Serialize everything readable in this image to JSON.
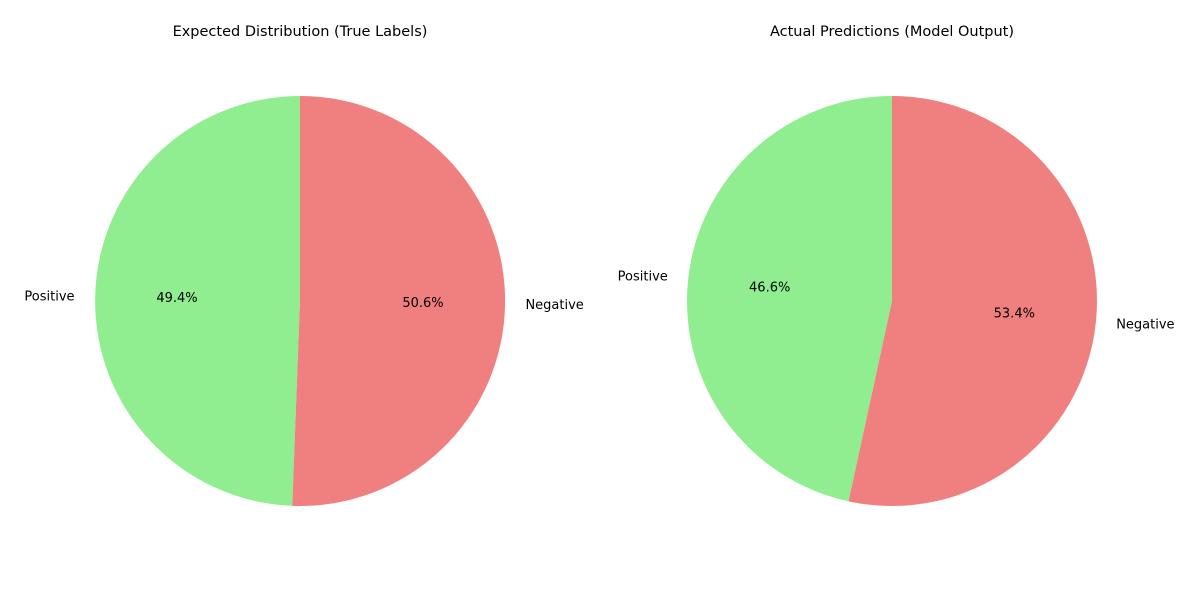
{
  "chart_data": [
    {
      "type": "pie",
      "title": "Expected Distribution (True Labels)",
      "slices": [
        {
          "label": "Positive",
          "value": 49.4,
          "pct_label": "49.4%",
          "color": "#90ee90"
        },
        {
          "label": "Negative",
          "value": 50.6,
          "pct_label": "50.6%",
          "color": "#f08080"
        }
      ],
      "start_angle_deg": 90,
      "direction": "counterclockwise"
    },
    {
      "type": "pie",
      "title": "Actual Predictions (Model Output)",
      "slices": [
        {
          "label": "Positive",
          "value": 46.6,
          "pct_label": "46.6%",
          "color": "#90ee90"
        },
        {
          "label": "Negative",
          "value": 53.4,
          "pct_label": "53.4%",
          "color": "#f08080"
        }
      ],
      "start_angle_deg": 90,
      "direction": "counterclockwise"
    }
  ]
}
